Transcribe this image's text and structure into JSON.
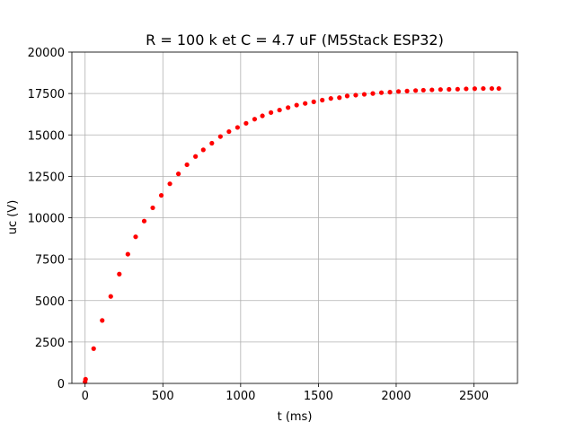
{
  "chart_data": {
    "type": "scatter",
    "title": "R = 100 k et C = 4.7 uF (M5Stack ESP32)",
    "xlabel": "t (ms)",
    "ylabel": "uc (V)",
    "xlim": [
      -85,
      2780
    ],
    "ylim": [
      0,
      20000
    ],
    "xticks": [
      0,
      500,
      1000,
      1500,
      2000,
      2500
    ],
    "yticks": [
      0,
      2500,
      5000,
      7500,
      10000,
      12500,
      15000,
      17500,
      20000
    ],
    "grid": true,
    "marker_color": "#ff0000",
    "series": [
      {
        "x": [
          0,
          3,
          55,
          110,
          165,
          220,
          275,
          325,
          380,
          435,
          490,
          545,
          600,
          655,
          710,
          760,
          815,
          870,
          925,
          980,
          1035,
          1090,
          1140,
          1195,
          1250,
          1305,
          1360,
          1415,
          1470,
          1525,
          1580,
          1635,
          1685,
          1740,
          1795,
          1850,
          1905,
          1960,
          2015,
          2070,
          2125,
          2175,
          2230,
          2285,
          2340,
          2395,
          2450,
          2505,
          2560,
          2615,
          2660
        ],
        "y": [
          100,
          250,
          2100,
          3800,
          5250,
          6600,
          7800,
          8850,
          9800,
          10600,
          11350,
          12050,
          12650,
          13200,
          13700,
          14100,
          14500,
          14900,
          15200,
          15450,
          15700,
          15950,
          16150,
          16350,
          16500,
          16650,
          16800,
          16900,
          17000,
          17100,
          17200,
          17250,
          17350,
          17400,
          17450,
          17500,
          17550,
          17580,
          17620,
          17650,
          17680,
          17700,
          17720,
          17740,
          17750,
          17760,
          17780,
          17790,
          17800,
          17800,
          17800
        ]
      }
    ]
  }
}
